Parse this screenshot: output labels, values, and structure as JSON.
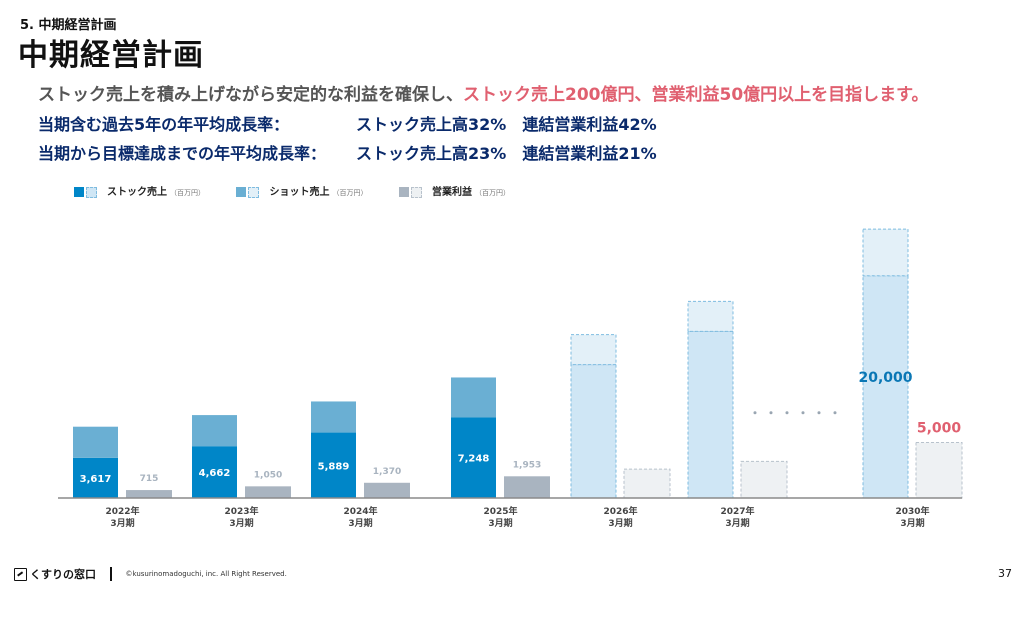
{
  "header": {
    "section_label": "5. 中期経営計画",
    "title": "中期経営計画",
    "subtitle_plain": "ストック売上を積み上げながら安定的な利益を確保し、",
    "subtitle_highlight": "ストック売上200億円、営業利益50億円以上を目指します。",
    "growth_rows": [
      {
        "label": "当期含む過去5年の年平均成長率：",
        "value1": "ストック売上高32%",
        "value2": "連結営業利益42%"
      },
      {
        "label": "当期から目標達成までの年平均成長率：",
        "value1": "ストック売上高23%",
        "value2": "連結営業利益21%"
      }
    ]
  },
  "legend": [
    {
      "name": "ストック売上",
      "unit": "（百万円）",
      "color": "#0086c8",
      "plan_color": "#cfe6f5"
    },
    {
      "name": "ショット売上",
      "unit": "（百万円）",
      "color": "#6aafd3",
      "plan_color": "#e3f0f8"
    },
    {
      "name": "営業利益",
      "unit": "（百万円）",
      "color": "#a9b4c0",
      "plan_color": "#eef1f3"
    }
  ],
  "chart_data": {
    "type": "bar",
    "categories": [
      [
        "2022年",
        "3月期"
      ],
      [
        "2023年",
        "3月期"
      ],
      [
        "2024年",
        "3月期"
      ],
      [
        "2025年",
        "3月期"
      ],
      [
        "2026年",
        "3月期"
      ],
      [
        "2027年",
        "3月期"
      ],
      [
        "2030年",
        "3月期"
      ]
    ],
    "plan_from_index": 4,
    "ellipsis": "・・・・・・",
    "ylim": [
      0,
      27000
    ],
    "series": [
      {
        "name": "ストック売上",
        "values": [
          3617,
          4662,
          5889,
          7248,
          12000,
          15000,
          20000
        ],
        "labels": [
          "3,617",
          "4,662",
          "5,889",
          "7,248",
          "",
          "",
          "20,000"
        ]
      },
      {
        "name": "ショット売上",
        "values": [
          2800,
          2800,
          2800,
          3600,
          2700,
          2700,
          4200
        ],
        "labels": [
          "",
          "",
          "",
          "",
          "",
          "",
          ""
        ]
      },
      {
        "name": "営業利益",
        "values": [
          715,
          1050,
          1370,
          1953,
          2600,
          3300,
          5000
        ],
        "labels": [
          "715",
          "1,050",
          "1,370",
          "1,953",
          "",
          "",
          "5,000"
        ]
      }
    ],
    "colors": {
      "stock": "#0086c8",
      "shot": "#6aafd3",
      "profit": "#a9b4c0",
      "plan_stock": "#cfe6f5",
      "plan_shot": "#e3f0f8",
      "plan_profit": "#eef1f3",
      "plan_border": "#7fbce0",
      "plan_profit_border": "#b8c2cc",
      "label_blue": "#0a77b5",
      "label_red": "#e06070",
      "label_grey": "#a9b4c0"
    }
  },
  "footer": {
    "brand": "くすりの窓口",
    "copyright": "©kusurinomadoguchi, inc. All Right Reserved.",
    "page_number": "37"
  }
}
